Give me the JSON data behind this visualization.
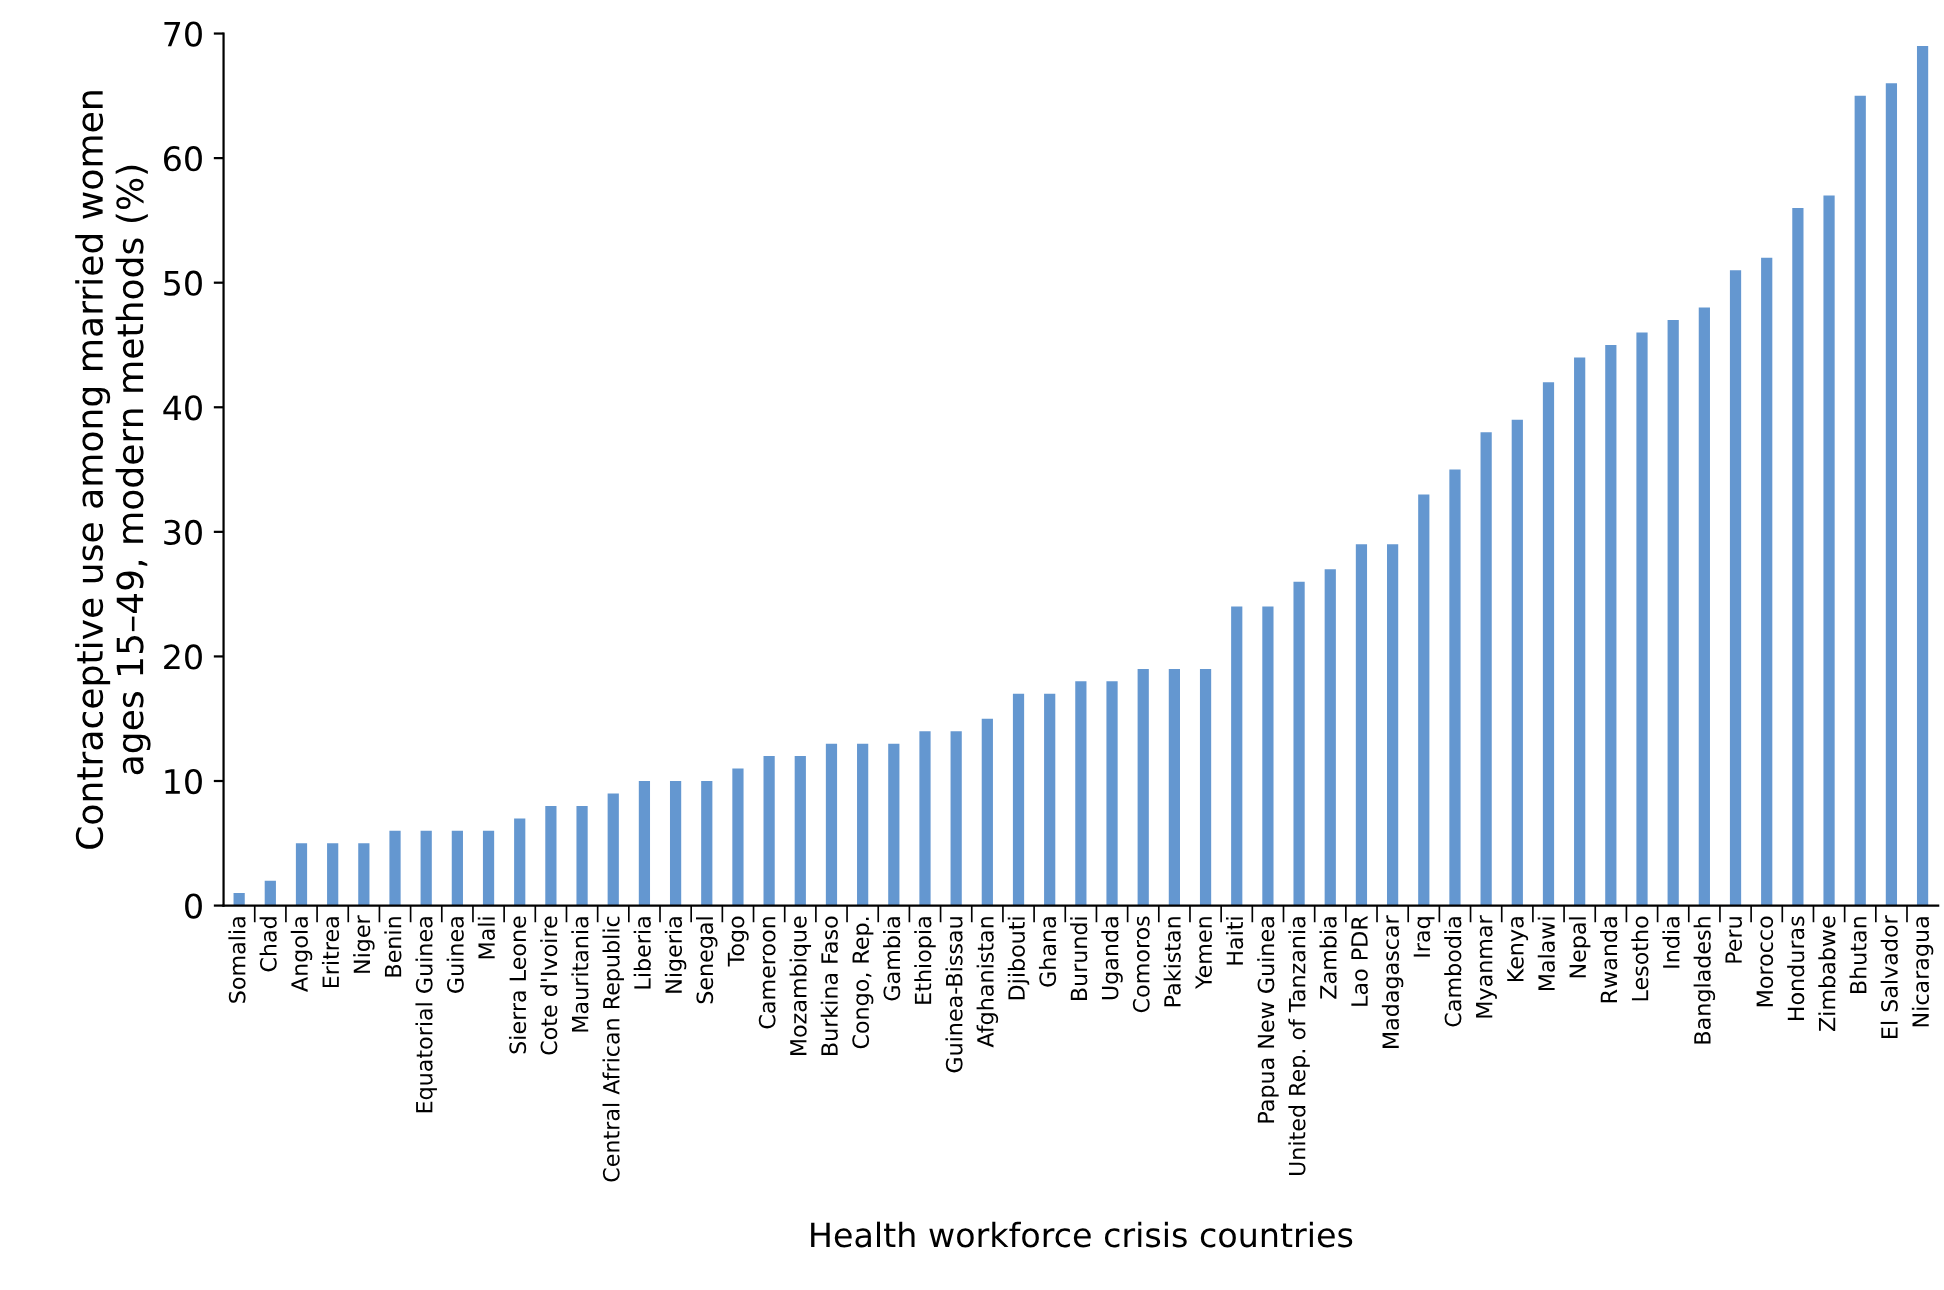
{
  "chart_data": {
    "type": "bar",
    "xlabel": "Health workforce crisis countries",
    "ylabel": "Contraceptive use among married women\nages 15–49, modern methods (%)",
    "categories": [
      "Somalia",
      "Chad",
      "Angola",
      "Eritrea",
      "Niger",
      "Benin",
      "Equatorial Guinea",
      "Guinea",
      "Mali",
      "Sierra Leone",
      "Cote d'Ivoire",
      "Mauritania",
      "Central African Republic",
      "Liberia",
      "Nigeria",
      "Senegal",
      "Togo",
      "Cameroon",
      "Mozambique",
      "Burkina Faso",
      "Congo, Rep.",
      "Gambia",
      "Ethiopia",
      "Guinea-Bissau",
      "Afghanistan",
      "Djibouti",
      "Ghana",
      "Burundi",
      "Uganda",
      "Comoros",
      "Pakistan",
      "Yemen",
      "Haiti",
      "Papua New Guinea",
      "United Rep. of Tanzania",
      "Zambia",
      "Lao PDR",
      "Madagascar",
      "Iraq",
      "Cambodia",
      "Myanmar",
      "Kenya",
      "Malawi",
      "Nepal",
      "Rwanda",
      "Lesotho",
      "India",
      "Bangladesh",
      "Peru",
      "Morocco",
      "Honduras",
      "Zimbabwe",
      "Bhutan",
      "El Salvador",
      "Nicaragua"
    ],
    "series": [
      {
        "color": "#6497d0",
        "values": [
          1,
          2,
          5,
          5,
          5,
          6,
          6,
          6,
          6,
          7,
          8,
          8,
          9,
          10,
          10,
          10,
          11,
          12,
          12,
          13,
          13,
          13,
          14,
          14,
          15,
          17,
          17,
          18,
          18,
          19,
          19,
          19,
          24,
          24,
          26,
          27,
          29,
          29,
          33,
          35,
          38,
          39,
          42,
          44,
          45,
          46,
          47,
          48,
          51,
          52,
          56,
          57,
          65,
          66,
          69
        ]
      }
    ],
    "ylim": [
      0,
      70
    ],
    "yticks": [
      0,
      10,
      20,
      30,
      40,
      50,
      60,
      70
    ],
    "grid": false,
    "legend": false
  }
}
